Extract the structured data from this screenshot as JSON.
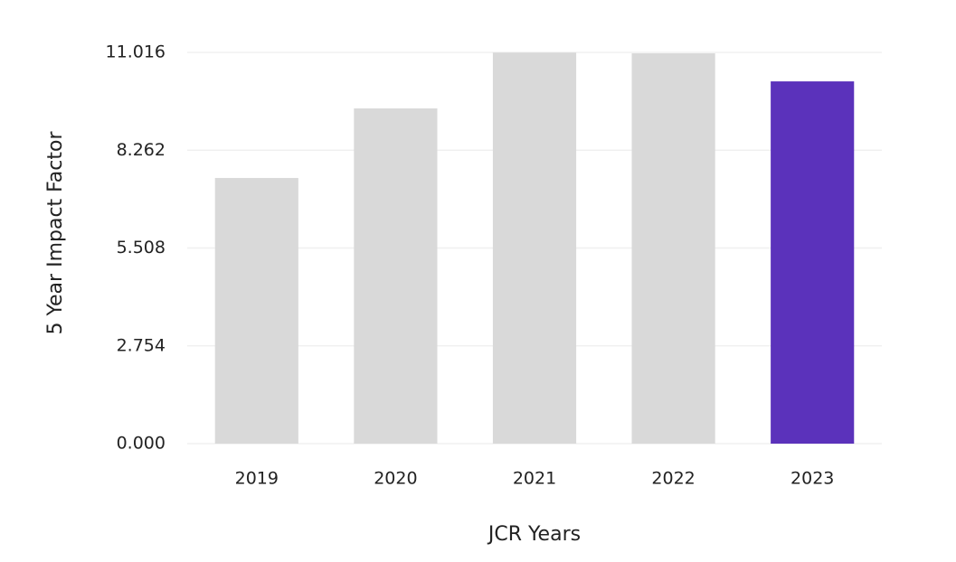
{
  "chart_data": {
    "type": "bar",
    "x_label": "JCR Years",
    "y_label": "5 Year Impact Factor",
    "categories": [
      "2019",
      "2020",
      "2021",
      "2022",
      "2023"
    ],
    "values": [
      7.48,
      9.44,
      11.01,
      10.99,
      10.2
    ],
    "colors": [
      "#d9d9d9",
      "#d9d9d9",
      "#d9d9d9",
      "#d9d9d9",
      "#5b32bb"
    ],
    "ylim": [
      0,
      11.016
    ],
    "yticks": [
      {
        "value": 0,
        "label": "0.000"
      },
      2.754,
      5.508,
      8.262,
      11.016
    ],
    "grid": true
  }
}
